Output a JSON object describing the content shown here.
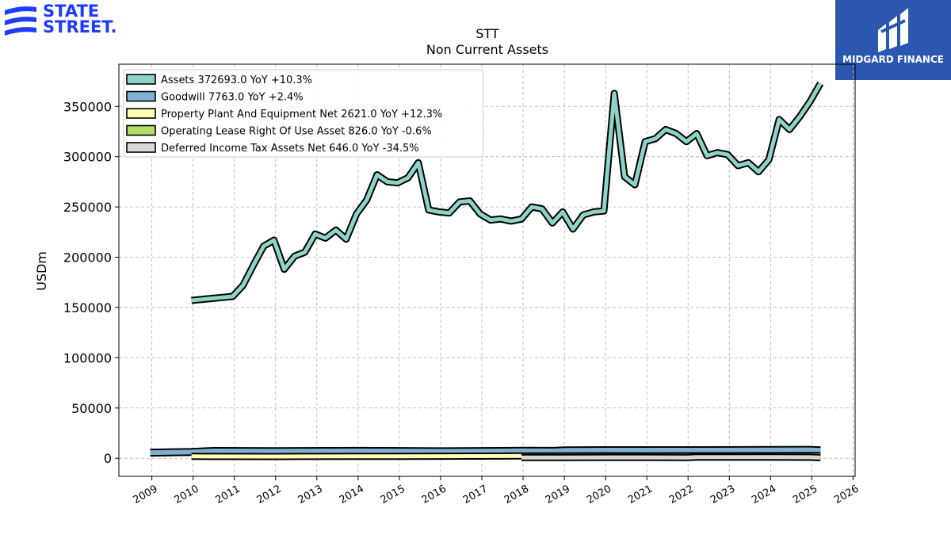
{
  "logos": {
    "left_brand": [
      "STATE",
      "STREET."
    ],
    "right_brand": "MIDGARD FINANCE"
  },
  "chart_data": {
    "type": "area",
    "title": "STT",
    "subtitle": "Non Current  Assets",
    "ylabel": "USDm",
    "xlabel": "",
    "ylim": [
      -18000,
      392000
    ],
    "xlim": [
      2008.2,
      2026.05
    ],
    "yticks": [
      0,
      50000,
      100000,
      150000,
      200000,
      250000,
      300000,
      350000
    ],
    "xticks": [
      2009,
      2010,
      2011,
      2012,
      2013,
      2014,
      2015,
      2016,
      2017,
      2018,
      2019,
      2020,
      2021,
      2022,
      2023,
      2024,
      2025,
      2026
    ],
    "grid": true,
    "legend_position": "top-left",
    "series": [
      {
        "name": "Assets  372693.0 YoY +10.3%",
        "color": "#8dd3c7",
        "x": [
          2009.96,
          2010.96,
          2011.21,
          2011.46,
          2011.71,
          2011.96,
          2012.21,
          2012.46,
          2012.71,
          2012.96,
          2013.21,
          2013.46,
          2013.71,
          2013.96,
          2014.21,
          2014.46,
          2014.71,
          2014.96,
          2015.21,
          2015.46,
          2015.71,
          2015.96,
          2016.21,
          2016.46,
          2016.71,
          2016.96,
          2017.21,
          2017.46,
          2017.71,
          2017.96,
          2018.21,
          2018.46,
          2018.71,
          2018.96,
          2019.21,
          2019.46,
          2019.71,
          2019.96,
          2020.21,
          2020.46,
          2020.71,
          2020.96,
          2021.21,
          2021.46,
          2021.71,
          2021.96,
          2022.21,
          2022.46,
          2022.71,
          2022.96,
          2023.21,
          2023.46,
          2023.71,
          2023.96,
          2024.21,
          2024.46,
          2024.71,
          2024.96,
          2025.21
        ],
        "values": [
          157000,
          161000,
          172000,
          192000,
          211000,
          217000,
          188000,
          201000,
          205000,
          223000,
          219000,
          227000,
          218000,
          243000,
          257000,
          282000,
          275000,
          274000,
          279000,
          294000,
          247000,
          245000,
          244000,
          255000,
          256000,
          243000,
          237000,
          238000,
          236000,
          238000,
          250000,
          248000,
          234000,
          245000,
          228000,
          242000,
          245000,
          246000,
          363000,
          280000,
          272000,
          315000,
          318000,
          327000,
          323000,
          315000,
          323000,
          301000,
          304000,
          302000,
          291000,
          294000,
          285000,
          297000,
          337000,
          327000,
          340000,
          355000,
          373000
        ]
      },
      {
        "name": "Goodwill  7763.0 YoY +2.4%",
        "color": "#80b1d3",
        "x": [
          2008.96,
          2009.96,
          2010.5,
          2012.0,
          2014.0,
          2016.0,
          2018.0,
          2018.75,
          2019.0,
          2020.0,
          2022.0,
          2024.0,
          2024.96,
          2025.21
        ],
        "values": [
          5600,
          6300,
          7200,
          7100,
          7300,
          6900,
          7400,
          7300,
          7900,
          8000,
          8000,
          8200,
          8300,
          7763
        ]
      },
      {
        "name": "Property Plant And Equipment Net  2621.0 YoY +12.3%",
        "color": "#ffffb3",
        "x": [
          2009.96,
          2012.0,
          2014.0,
          2016.0,
          2018.0,
          2019.0,
          2020.0,
          2021.0,
          2022.0,
          2023.0,
          2024.0,
          2024.96,
          2025.21
        ],
        "values": [
          1900,
          1700,
          1900,
          2000,
          2300,
          2400,
          2500,
          2400,
          2500,
          2500,
          2600,
          2700,
          2621
        ]
      },
      {
        "name": "Operating Lease Right Of Use Asset  826.0 YoY -0.6%",
        "color": "#b3de69",
        "x": [
          2018.96,
          2020.0,
          2021.0,
          2022.0,
          2023.0,
          2024.0,
          2024.96,
          2025.21
        ],
        "values": [
          1300,
          1200,
          1100,
          1000,
          950,
          880,
          830,
          826
        ]
      },
      {
        "name": "Deferred Income Tax Assets Net  646.0 YoY -34.5%",
        "color": "#d9d9d9",
        "x": [
          2017.96,
          2019.0,
          2020.0,
          2021.0,
          2022.0,
          2022.2,
          2023.0,
          2024.0,
          2024.96,
          2025.21
        ],
        "values": [
          700,
          760,
          820,
          820,
          800,
          1150,
          1100,
          1100,
          990,
          646
        ]
      }
    ]
  }
}
